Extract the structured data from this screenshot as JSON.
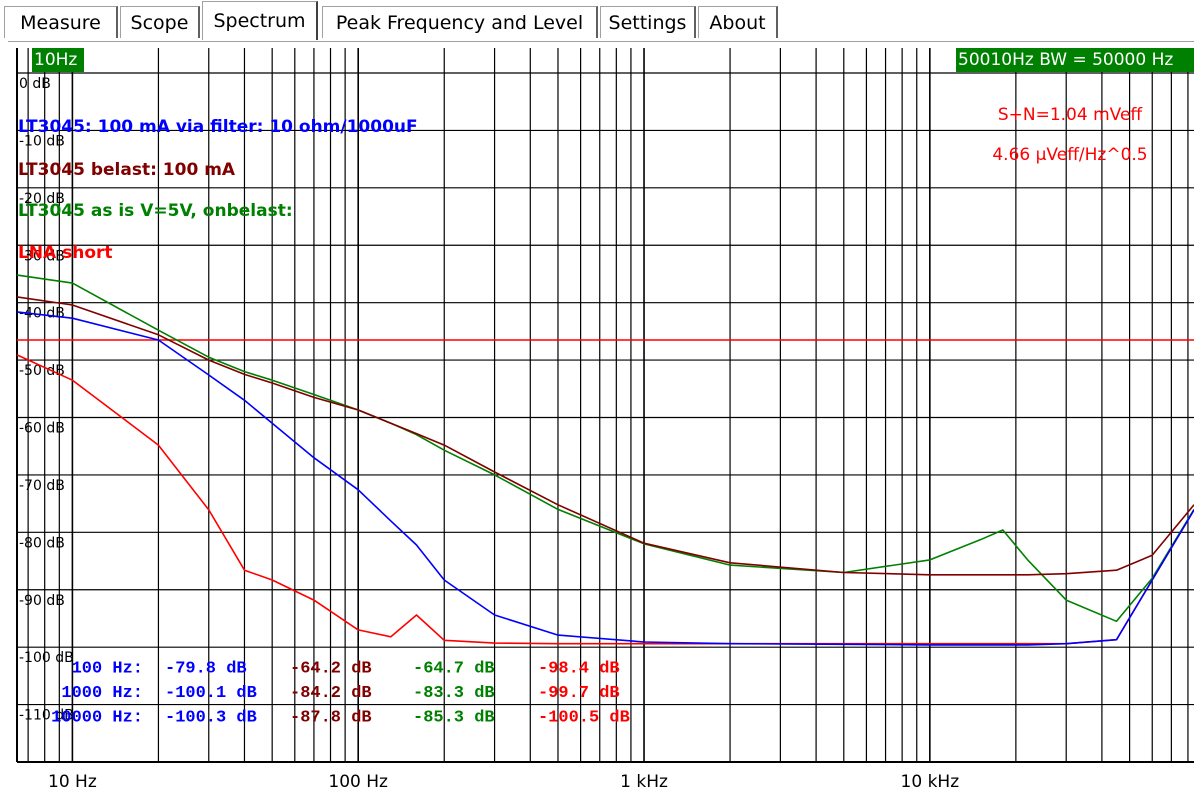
{
  "tabs": [
    "Measure",
    "Scope",
    "Spectrum",
    "Peak Frequency and Level",
    "Settings",
    "About"
  ],
  "selected_tab": 2,
  "chart_data": {
    "type": "line",
    "x_start_label": "10Hz",
    "x_end_label": "50010Hz BW = 50000 Hz",
    "log_x": true,
    "grid": true,
    "xlim": [
      6.4,
      84000
    ],
    "ylim": [
      -120,
      0
    ],
    "xticks": [
      {
        "value": 10,
        "label": "10 Hz"
      },
      {
        "value": 100,
        "label": "100 Hz"
      },
      {
        "value": 1000,
        "label": "1 kHz"
      },
      {
        "value": 10000,
        "label": "10 kHz"
      }
    ],
    "xminor": [
      7,
      8,
      9,
      20,
      30,
      40,
      50,
      60,
      70,
      80,
      90,
      200,
      300,
      400,
      500,
      600,
      700,
      800,
      900,
      2000,
      3000,
      4000,
      5000,
      6000,
      7000,
      8000,
      9000,
      20000,
      30000,
      40000,
      50000,
      60000,
      70000,
      80000
    ],
    "yticks": [
      {
        "value": 0,
        "label": "0 dB"
      },
      {
        "value": -10,
        "label": "-10 dB"
      },
      {
        "value": -20,
        "label": "-20 dB"
      },
      {
        "value": -30,
        "label": "-30 dB"
      },
      {
        "value": -40,
        "label": "-40 dB"
      },
      {
        "value": -50,
        "label": "-50 dB"
      },
      {
        "value": -60,
        "label": "-60 dB"
      },
      {
        "value": -70,
        "label": "-70 dB"
      },
      {
        "value": -80,
        "label": "-80 dB"
      },
      {
        "value": -90,
        "label": "-90 dB"
      },
      {
        "value": -100,
        "label": "-100 dB"
      },
      {
        "value": -110,
        "label": "-110 dB"
      }
    ],
    "x": [
      6.4,
      10,
      20,
      30,
      40,
      50,
      70,
      100,
      130,
      160,
      200,
      300,
      500,
      1000,
      2000,
      5000,
      10000,
      15000,
      18000,
      22000,
      30000,
      45000,
      60000,
      84000
    ],
    "series": [
      {
        "name": "LT3045: 100 mA via filter: 10 ohm/1000uF",
        "color": "#0000ff",
        "values": [
          -41.6,
          -42.7,
          -46.5,
          -52.6,
          -57,
          -61,
          -67,
          -72.6,
          -78,
          -82.2,
          -88.3,
          -94.4,
          -97.9,
          -99.1,
          -99.4,
          -99.5,
          -99.6,
          -99.6,
          -99.6,
          -99.6,
          -99.4,
          -98.7,
          -88.3,
          -76.1
        ]
      },
      {
        "name": "LT3045 belast: 100 mA",
        "color": "#800000",
        "values": [
          -39,
          -40.4,
          -45.6,
          -50,
          -52.5,
          -54,
          -56.5,
          -58.7,
          -61,
          -62.8,
          -64.8,
          -69.5,
          -75.2,
          -81.9,
          -85.3,
          -87,
          -87.4,
          -87.4,
          -87.4,
          -87.4,
          -87.2,
          -86.6,
          -84,
          -75.2
        ]
      },
      {
        "name": "LT3045 as is V=5V, onbelast:",
        "color": "#008000",
        "values": [
          -35.2,
          -36.6,
          -44.8,
          -49.5,
          -52,
          -53.5,
          -56,
          -58.7,
          -61,
          -63,
          -65.7,
          -70,
          -76,
          -82,
          -85.7,
          -87,
          -84.8,
          -81.3,
          -79.6,
          -84.8,
          -91.8,
          -95.5,
          -88,
          -76
        ]
      },
      {
        "name": "LNA short",
        "color": "#ff0000",
        "values": [
          -49.1,
          -53.5,
          -64.8,
          -76.1,
          -86.6,
          -88.3,
          -91.8,
          -97,
          -98.2,
          -94.4,
          -98.8,
          -99.3,
          -99.4,
          -99.4,
          -99.4,
          -99.4,
          -99.4,
          -99.4,
          -99.4,
          -99.4,
          -99.4,
          -98.7,
          -88.3,
          -76.1
        ]
      }
    ],
    "reference_line": {
      "value": -46.5,
      "color": "#ff0000"
    },
    "annotations": [
      "S+N=1.04 mVeff",
      "4.66 µVeff/Hz^0.5"
    ],
    "readings": [
      {
        "label": "100 Hz:",
        "values": [
          "-79.8 dB",
          "-64.2 dB",
          "-64.7 dB",
          "-98.4 dB"
        ]
      },
      {
        "label": "1000 Hz:",
        "values": [
          "-100.1 dB",
          "-84.2 dB",
          "-83.3 dB",
          "-99.7 dB"
        ]
      },
      {
        "label": "10000 Hz:",
        "values": [
          "-100.3 dB",
          "-87.8 dB",
          "-85.3 dB",
          "-100.5 dB"
        ]
      }
    ]
  }
}
